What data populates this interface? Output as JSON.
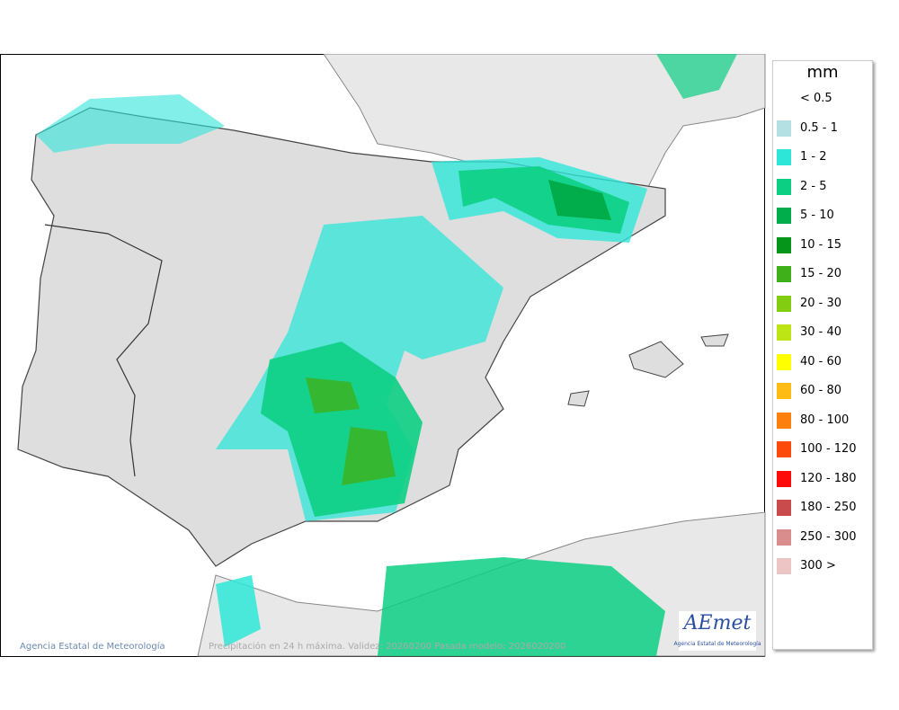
{
  "legend": {
    "title": "mm",
    "items": [
      {
        "label": "< 0.5",
        "color": "#ffffff"
      },
      {
        "label": "0.5 - 1",
        "color": "#b4dfe3"
      },
      {
        "label": "1 - 2",
        "color": "#2ee6d8"
      },
      {
        "label": "2 - 5",
        "color": "#0ccf83"
      },
      {
        "label": "5 - 10",
        "color": "#00ad4a"
      },
      {
        "label": "10 - 15",
        "color": "#05951a"
      },
      {
        "label": "15 - 20",
        "color": "#3fb01a"
      },
      {
        "label": "20 - 30",
        "color": "#82cc12"
      },
      {
        "label": "30 - 40",
        "color": "#bde414"
      },
      {
        "label": "40 - 60",
        "color": "#ffff00"
      },
      {
        "label": "60 - 80",
        "color": "#fdbb14"
      },
      {
        "label": "80 - 100",
        "color": "#fd7f0d"
      },
      {
        "label": "100 - 120",
        "color": "#fd4a0c"
      },
      {
        "label": "120 - 180",
        "color": "#fd0a0a"
      },
      {
        "label": "180 - 250",
        "color": "#c94b4b"
      },
      {
        "label": "250 - 300",
        "color": "#d98d8d"
      },
      {
        "label": "300 >",
        "color": "#edc5c5"
      }
    ]
  },
  "footer": {
    "agency": "Agencia Estatal de Meteorología",
    "caption": "Precipitación en 24 h máxima. Validez: 20260200 Pasada modelo: 2026020200"
  },
  "logo": {
    "name": "AEmet",
    "subtitle": "Agencia Estatal de Meteorología"
  }
}
